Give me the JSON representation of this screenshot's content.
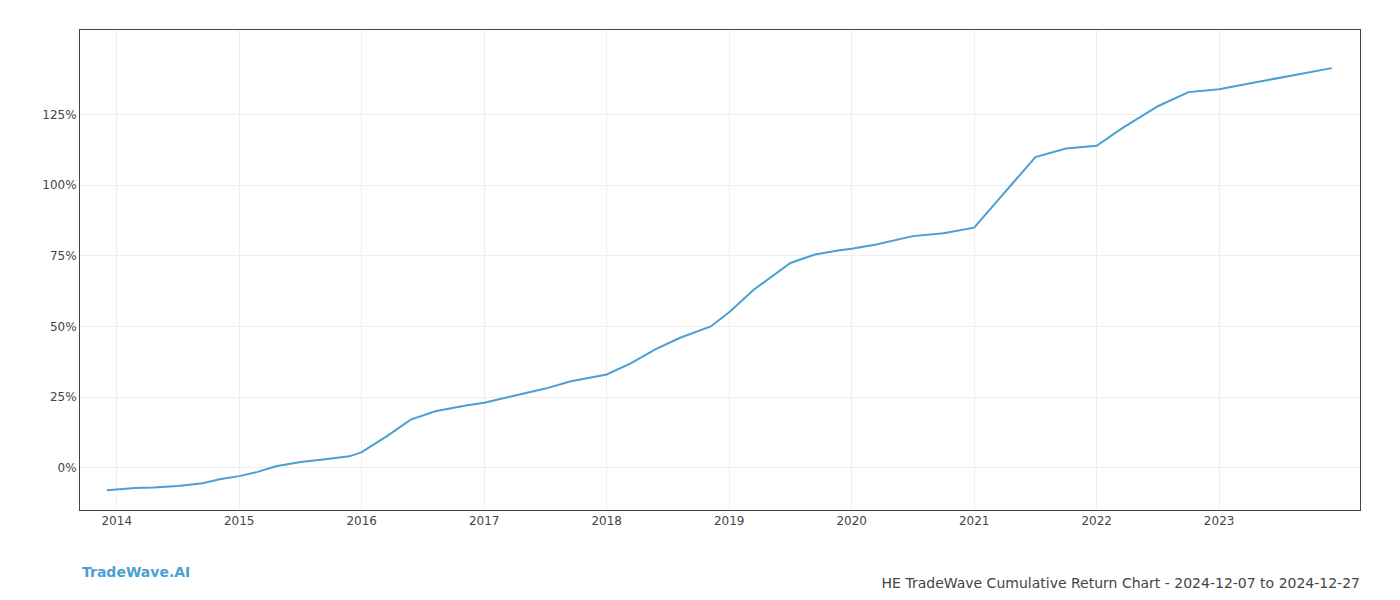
{
  "chart_data": {
    "type": "line",
    "title": "HE TradeWave Cumulative Return Chart - 2024-12-07 to 2024-12-27",
    "annotations": [
      "TradeWave.AI"
    ],
    "x": [
      2013.92,
      2014.05,
      2014.15,
      2014.3,
      2014.5,
      2014.7,
      2014.85,
      2015.0,
      2015.15,
      2015.3,
      2015.5,
      2015.7,
      2015.9,
      2016.0,
      2016.2,
      2016.4,
      2016.6,
      2016.85,
      2017.0,
      2017.2,
      2017.5,
      2017.7,
      2017.9,
      2018.0,
      2018.2,
      2018.4,
      2018.6,
      2018.85,
      2019.0,
      2019.2,
      2019.5,
      2019.7,
      2019.9,
      2020.0,
      2020.2,
      2020.5,
      2020.75,
      2021.0,
      2021.2,
      2021.5,
      2021.75,
      2022.0,
      2022.2,
      2022.5,
      2022.75,
      2023.0,
      2023.3,
      2023.6,
      2023.92
    ],
    "values": [
      -8.0,
      -7.5,
      -7.2,
      -7.0,
      -6.5,
      -5.5,
      -4.0,
      -3.0,
      -1.5,
      0.5,
      2.0,
      3.0,
      4.0,
      5.5,
      11.0,
      17.0,
      20.0,
      22.0,
      23.0,
      25.0,
      28.0,
      30.5,
      32.0,
      33.0,
      37.0,
      42.0,
      46.0,
      50.0,
      55.0,
      63.0,
      72.5,
      75.5,
      77.0,
      77.5,
      79.0,
      82.0,
      83.0,
      85.0,
      95.0,
      110.0,
      113.0,
      114.0,
      120.0,
      128.0,
      133.0,
      134.0,
      136.5,
      139.0,
      141.5
    ],
    "color": "#4a9fd4",
    "xlim": [
      2013.7,
      2024.15
    ],
    "xticks": [
      2014,
      2015,
      2016,
      2017,
      2018,
      2019,
      2020,
      2021,
      2022,
      2023
    ],
    "ylim": [
      -15,
      155
    ],
    "yticks": [
      {
        "value": 0,
        "label": "0%"
      },
      {
        "value": 25,
        "label": "25%"
      },
      {
        "value": 50,
        "label": "50%"
      },
      {
        "value": 75,
        "label": "75%"
      },
      {
        "value": 100,
        "label": "100%"
      },
      {
        "value": 125,
        "label": "125%"
      }
    ],
    "grid": true
  }
}
